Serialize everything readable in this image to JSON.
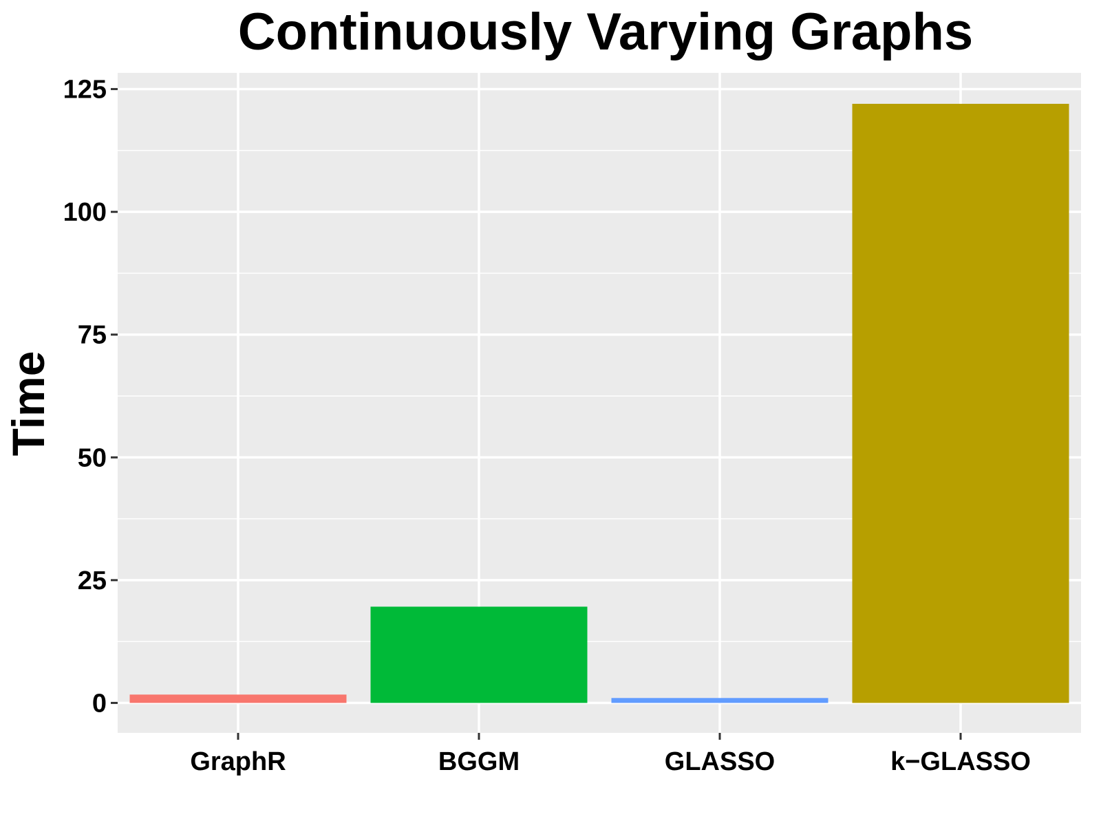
{
  "chart_data": {
    "type": "bar",
    "title": "Continuously Varying Graphs",
    "xlabel": "",
    "ylabel": "Time",
    "categories": [
      "GraphR",
      "BGGM",
      "GLASSO",
      "k−GLASSO"
    ],
    "values": [
      1.7,
      19.6,
      1.0,
      122.0
    ],
    "bar_colors": [
      "#F8766D",
      "#00BA38",
      "#619CFF",
      "#B79F00"
    ],
    "y_ticks": [
      0,
      25,
      50,
      75,
      100,
      125
    ],
    "y_tick_labels": [
      "0",
      "25",
      "50",
      "75",
      "100",
      "125"
    ],
    "ylim": [
      -6.1,
      128.3
    ],
    "grid": true,
    "legend": "none",
    "panel_background": "#EBEBEB",
    "gridline_color": "#FFFFFF"
  }
}
